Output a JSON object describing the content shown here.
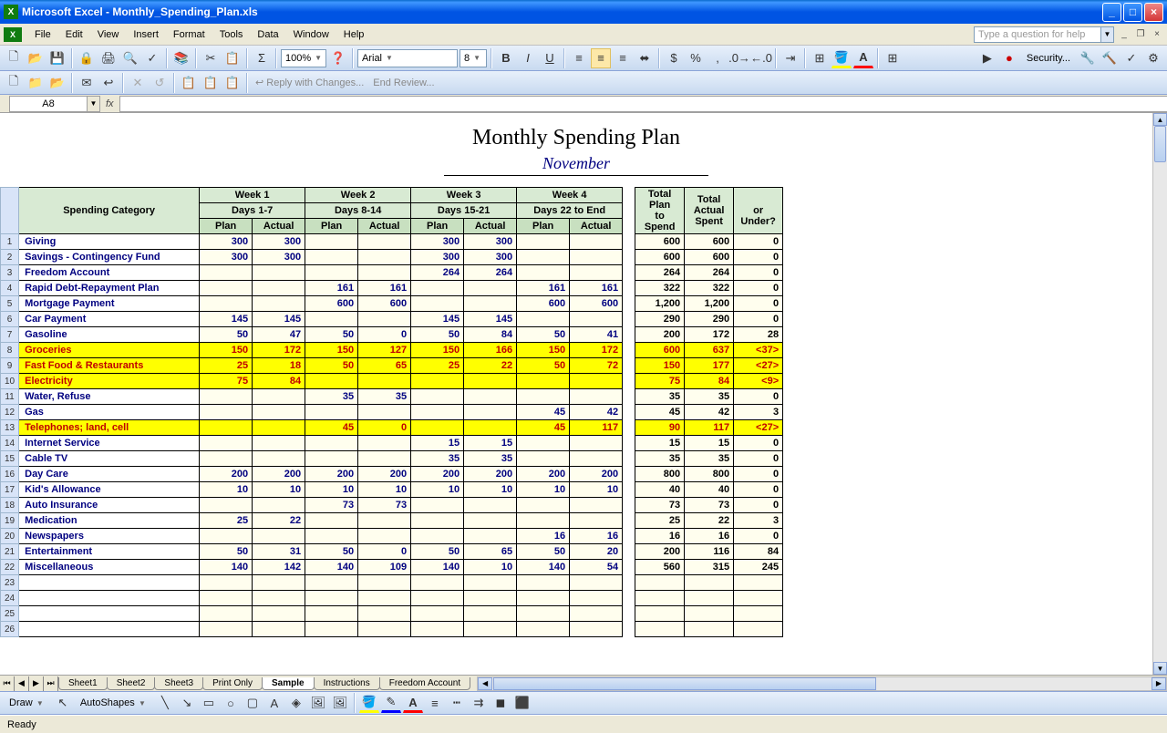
{
  "app": {
    "title": "Microsoft Excel - Monthly_Spending_Plan.xls"
  },
  "menu": {
    "items": [
      "File",
      "Edit",
      "View",
      "Insert",
      "Format",
      "Tools",
      "Data",
      "Window",
      "Help"
    ],
    "help_placeholder": "Type a question for help"
  },
  "toolbar": {
    "zoom": "100%",
    "font_name": "Arial",
    "font_size": "8",
    "security": "Security..."
  },
  "review": {
    "reply": "Reply with Changes...",
    "end": "End Review..."
  },
  "namebox": {
    "cell": "A8"
  },
  "doc": {
    "title": "Monthly Spending Plan",
    "subtitle": "November"
  },
  "headers": {
    "category": "Spending Category",
    "weeks": [
      {
        "top": "Week 1",
        "sub": "Days 1-7"
      },
      {
        "top": "Week 2",
        "sub": "Days 8-14"
      },
      {
        "top": "Week 3",
        "sub": "Days 15-21"
      },
      {
        "top": "Week 4",
        "sub": "Days 22 to End"
      }
    ],
    "plan": "Plan",
    "actual": "Actual",
    "totals": [
      "Total Plan to Spend",
      "Total Actual Spent",
      "<Over> or Under?"
    ]
  },
  "rows": [
    {
      "n": 1,
      "cat": "Giving",
      "w": [
        [
          "300",
          "300"
        ],
        [
          "",
          ""
        ],
        [
          "300",
          "300"
        ],
        [
          "",
          ""
        ]
      ],
      "t": [
        "600",
        "600",
        "0"
      ],
      "hl": false
    },
    {
      "n": 2,
      "cat": "Savings - Contingency Fund",
      "w": [
        [
          "300",
          "300"
        ],
        [
          "",
          ""
        ],
        [
          "300",
          "300"
        ],
        [
          "",
          ""
        ]
      ],
      "t": [
        "600",
        "600",
        "0"
      ],
      "hl": false
    },
    {
      "n": 3,
      "cat": "Freedom Account",
      "w": [
        [
          "",
          ""
        ],
        [
          "",
          ""
        ],
        [
          "264",
          "264"
        ],
        [
          "",
          ""
        ]
      ],
      "t": [
        "264",
        "264",
        "0"
      ],
      "hl": false
    },
    {
      "n": 4,
      "cat": "Rapid Debt-Repayment Plan",
      "w": [
        [
          "",
          ""
        ],
        [
          "161",
          "161"
        ],
        [
          "",
          ""
        ],
        [
          "161",
          "161"
        ]
      ],
      "t": [
        "322",
        "322",
        "0"
      ],
      "hl": false
    },
    {
      "n": 5,
      "cat": "Mortgage Payment",
      "w": [
        [
          "",
          ""
        ],
        [
          "600",
          "600"
        ],
        [
          "",
          ""
        ],
        [
          "600",
          "600"
        ]
      ],
      "t": [
        "1,200",
        "1,200",
        "0"
      ],
      "hl": false
    },
    {
      "n": 6,
      "cat": "Car Payment",
      "w": [
        [
          "145",
          "145"
        ],
        [
          "",
          ""
        ],
        [
          "145",
          "145"
        ],
        [
          "",
          ""
        ]
      ],
      "t": [
        "290",
        "290",
        "0"
      ],
      "hl": false
    },
    {
      "n": 7,
      "cat": "Gasoline",
      "w": [
        [
          "50",
          "47"
        ],
        [
          "50",
          "0"
        ],
        [
          "50",
          "84"
        ],
        [
          "50",
          "41"
        ]
      ],
      "t": [
        "200",
        "172",
        "28"
      ],
      "hl": false
    },
    {
      "n": 8,
      "cat": "Groceries",
      "w": [
        [
          "150",
          "172"
        ],
        [
          "150",
          "127"
        ],
        [
          "150",
          "166"
        ],
        [
          "150",
          "172"
        ]
      ],
      "t": [
        "600",
        "637",
        "<37>"
      ],
      "hl": true
    },
    {
      "n": 9,
      "cat": "Fast Food & Restaurants",
      "w": [
        [
          "25",
          "18"
        ],
        [
          "50",
          "65"
        ],
        [
          "25",
          "22"
        ],
        [
          "50",
          "72"
        ]
      ],
      "t": [
        "150",
        "177",
        "<27>"
      ],
      "hl": true
    },
    {
      "n": 10,
      "cat": "Electricity",
      "w": [
        [
          "75",
          "84"
        ],
        [
          "",
          ""
        ],
        [
          "",
          ""
        ],
        [
          "",
          ""
        ]
      ],
      "t": [
        "75",
        "84",
        "<9>"
      ],
      "hl": true
    },
    {
      "n": 11,
      "cat": "Water, Refuse",
      "w": [
        [
          "",
          ""
        ],
        [
          "35",
          "35"
        ],
        [
          "",
          ""
        ],
        [
          "",
          ""
        ]
      ],
      "t": [
        "35",
        "35",
        "0"
      ],
      "hl": false
    },
    {
      "n": 12,
      "cat": "Gas",
      "w": [
        [
          "",
          ""
        ],
        [
          "",
          ""
        ],
        [
          "",
          ""
        ],
        [
          "45",
          "42"
        ]
      ],
      "t": [
        "45",
        "42",
        "3"
      ],
      "hl": false
    },
    {
      "n": 13,
      "cat": "Telephones; land, cell",
      "w": [
        [
          "",
          ""
        ],
        [
          "45",
          "0"
        ],
        [
          "",
          ""
        ],
        [
          "45",
          "117"
        ]
      ],
      "t": [
        "90",
        "117",
        "<27>"
      ],
      "hl": true
    },
    {
      "n": 14,
      "cat": "Internet Service",
      "w": [
        [
          "",
          ""
        ],
        [
          "",
          ""
        ],
        [
          "15",
          "15"
        ],
        [
          "",
          ""
        ]
      ],
      "t": [
        "15",
        "15",
        "0"
      ],
      "hl": false
    },
    {
      "n": 15,
      "cat": "Cable TV",
      "w": [
        [
          "",
          ""
        ],
        [
          "",
          ""
        ],
        [
          "35",
          "35"
        ],
        [
          "",
          ""
        ]
      ],
      "t": [
        "35",
        "35",
        "0"
      ],
      "hl": false
    },
    {
      "n": 16,
      "cat": "Day Care",
      "w": [
        [
          "200",
          "200"
        ],
        [
          "200",
          "200"
        ],
        [
          "200",
          "200"
        ],
        [
          "200",
          "200"
        ]
      ],
      "t": [
        "800",
        "800",
        "0"
      ],
      "hl": false
    },
    {
      "n": 17,
      "cat": "Kid's Allowance",
      "w": [
        [
          "10",
          "10"
        ],
        [
          "10",
          "10"
        ],
        [
          "10",
          "10"
        ],
        [
          "10",
          "10"
        ]
      ],
      "t": [
        "40",
        "40",
        "0"
      ],
      "hl": false
    },
    {
      "n": 18,
      "cat": "Auto Insurance",
      "w": [
        [
          "",
          ""
        ],
        [
          "73",
          "73"
        ],
        [
          "",
          ""
        ],
        [
          "",
          ""
        ]
      ],
      "t": [
        "73",
        "73",
        "0"
      ],
      "hl": false
    },
    {
      "n": 19,
      "cat": "Medication",
      "w": [
        [
          "25",
          "22"
        ],
        [
          "",
          ""
        ],
        [
          "",
          ""
        ],
        [
          "",
          ""
        ]
      ],
      "t": [
        "25",
        "22",
        "3"
      ],
      "hl": false
    },
    {
      "n": 20,
      "cat": "Newspapers",
      "w": [
        [
          "",
          ""
        ],
        [
          "",
          ""
        ],
        [
          "",
          ""
        ],
        [
          "16",
          "16"
        ]
      ],
      "t": [
        "16",
        "16",
        "0"
      ],
      "hl": false
    },
    {
      "n": 21,
      "cat": "Entertainment",
      "w": [
        [
          "50",
          "31"
        ],
        [
          "50",
          "0"
        ],
        [
          "50",
          "65"
        ],
        [
          "50",
          "20"
        ]
      ],
      "t": [
        "200",
        "116",
        "84"
      ],
      "hl": false
    },
    {
      "n": 22,
      "cat": "Miscellaneous",
      "w": [
        [
          "140",
          "142"
        ],
        [
          "140",
          "109"
        ],
        [
          "140",
          "10"
        ],
        [
          "140",
          "54"
        ]
      ],
      "t": [
        "560",
        "315",
        "245"
      ],
      "hl": false
    },
    {
      "n": 23,
      "cat": "",
      "w": [
        [
          "",
          ""
        ],
        [
          "",
          ""
        ],
        [
          "",
          ""
        ],
        [
          "",
          ""
        ]
      ],
      "t": [
        "",
        "",
        ""
      ],
      "hl": false
    },
    {
      "n": 24,
      "cat": "",
      "w": [
        [
          "",
          ""
        ],
        [
          "",
          ""
        ],
        [
          "",
          ""
        ],
        [
          "",
          ""
        ]
      ],
      "t": [
        "",
        "",
        ""
      ],
      "hl": false
    },
    {
      "n": 25,
      "cat": "",
      "w": [
        [
          "",
          ""
        ],
        [
          "",
          ""
        ],
        [
          "",
          ""
        ],
        [
          "",
          ""
        ]
      ],
      "t": [
        "",
        "",
        ""
      ],
      "hl": false
    },
    {
      "n": 26,
      "cat": "",
      "w": [
        [
          "",
          ""
        ],
        [
          "",
          ""
        ],
        [
          "",
          ""
        ],
        [
          "",
          ""
        ]
      ],
      "t": [
        "",
        "",
        ""
      ],
      "hl": false
    }
  ],
  "tabs": {
    "items": [
      "Sheet1",
      "Sheet2",
      "Sheet3",
      "Print Only",
      "Sample",
      "Instructions",
      "Freedom Account"
    ],
    "active": 4
  },
  "draw": {
    "label": "Draw",
    "autoshapes": "AutoShapes"
  },
  "status": {
    "text": "Ready"
  },
  "colors": {
    "header_green": "#d8ead3",
    "cream": "#fffeee",
    "yellow_hl": "#ffff00",
    "navy": "#000080",
    "red": "#c00000",
    "row_hdr": "#d8e4f8"
  }
}
